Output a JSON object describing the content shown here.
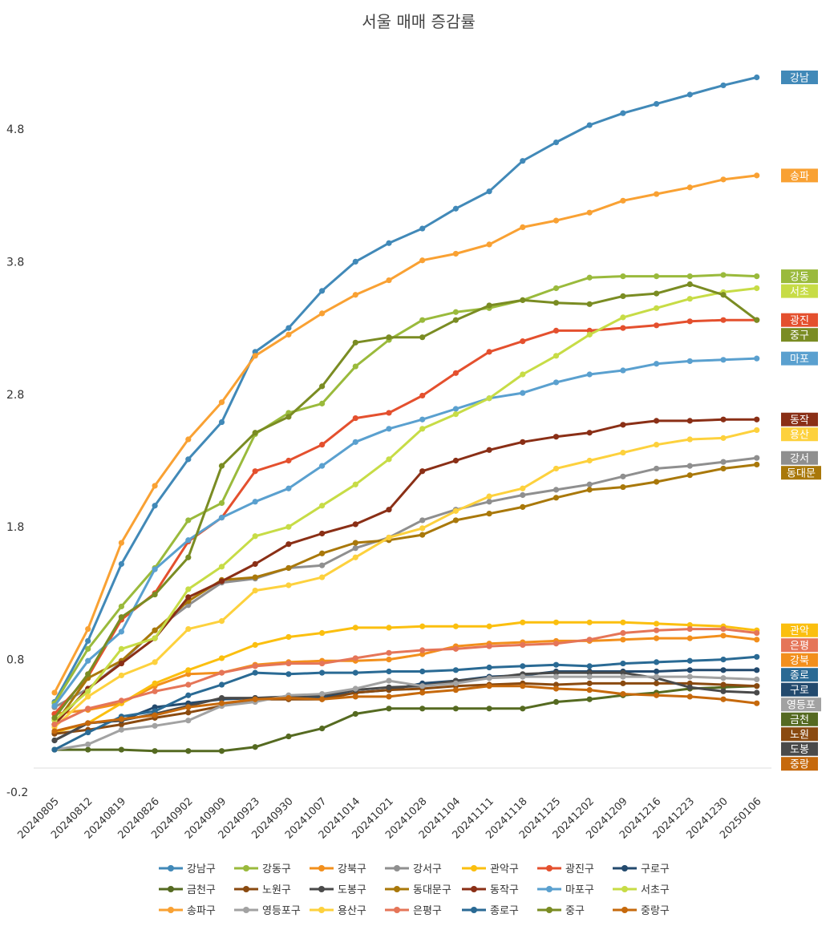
{
  "chart_data": {
    "type": "line",
    "title": "서울 매매 증감률",
    "xlabel": "",
    "ylabel": "",
    "ylim": [
      -0.2,
      5.6
    ],
    "yticks": [
      -0.2,
      0.8,
      1.8,
      2.8,
      3.8,
      4.8
    ],
    "categories": [
      "20240805",
      "20240812",
      "20240819",
      "20240826",
      "20240902",
      "20240909",
      "20240923",
      "20240930",
      "20241007",
      "20241014",
      "20241021",
      "20241028",
      "20241104",
      "20241111",
      "20241118",
      "20241125",
      "20241202",
      "20241209",
      "20241216",
      "20241223",
      "20241230",
      "20250106"
    ],
    "series": [
      {
        "name": "강남구",
        "color": "#4189b8",
        "end_label": "강남",
        "values": [
          0.48,
          0.94,
          1.52,
          1.96,
          2.31,
          2.59,
          3.12,
          3.3,
          3.58,
          3.8,
          3.94,
          4.05,
          4.2,
          4.33,
          4.56,
          4.7,
          4.83,
          4.92,
          4.99,
          5.06,
          5.13,
          5.19
        ]
      },
      {
        "name": "강동구",
        "color": "#9aba3c",
        "end_label": "강동",
        "values": [
          0.47,
          0.88,
          1.2,
          1.49,
          1.85,
          1.98,
          2.5,
          2.66,
          2.73,
          3.01,
          3.21,
          3.36,
          3.42,
          3.45,
          3.51,
          3.6,
          3.68,
          3.69,
          3.69,
          3.69,
          3.7,
          3.69
        ]
      },
      {
        "name": "강북구",
        "color": "#f28f1c",
        "end_label": "강북",
        "values": [
          0.39,
          0.42,
          0.47,
          0.6,
          0.69,
          0.7,
          0.76,
          0.78,
          0.79,
          0.79,
          0.8,
          0.84,
          0.9,
          0.92,
          0.93,
          0.94,
          0.94,
          0.95,
          0.96,
          0.96,
          0.98,
          0.95
        ]
      },
      {
        "name": "강서구",
        "color": "#8f8f8f",
        "end_label": "강서",
        "values": [
          0.44,
          0.58,
          0.78,
          1.02,
          1.21,
          1.38,
          1.41,
          1.49,
          1.51,
          1.64,
          1.72,
          1.85,
          1.93,
          1.99,
          2.04,
          2.08,
          2.12,
          2.18,
          2.24,
          2.26,
          2.29,
          2.32
        ]
      },
      {
        "name": "관악구",
        "color": "#fbbf0f",
        "end_label": "관악",
        "values": [
          0.25,
          0.32,
          0.47,
          0.62,
          0.72,
          0.81,
          0.91,
          0.97,
          1.0,
          1.04,
          1.04,
          1.05,
          1.05,
          1.05,
          1.08,
          1.08,
          1.08,
          1.08,
          1.07,
          1.06,
          1.05,
          1.02
        ]
      },
      {
        "name": "광진구",
        "color": "#e4502e",
        "end_label": "광진",
        "values": [
          0.39,
          0.67,
          1.1,
          1.3,
          1.69,
          1.87,
          2.22,
          2.3,
          2.42,
          2.62,
          2.66,
          2.79,
          2.96,
          3.12,
          3.2,
          3.28,
          3.28,
          3.3,
          3.32,
          3.35,
          3.36,
          3.36
        ]
      },
      {
        "name": "구로구",
        "color": "#234a6e",
        "end_label": "구로",
        "values": [
          0.19,
          0.32,
          0.34,
          0.44,
          0.47,
          0.5,
          0.51,
          0.51,
          0.52,
          0.55,
          0.57,
          0.62,
          0.64,
          0.67,
          0.68,
          0.71,
          0.71,
          0.71,
          0.71,
          0.72,
          0.72,
          0.72
        ]
      },
      {
        "name": "금천구",
        "color": "#556a21",
        "end_label": "금천",
        "values": [
          0.12,
          0.12,
          0.12,
          0.11,
          0.11,
          0.11,
          0.14,
          0.22,
          0.28,
          0.39,
          0.43,
          0.43,
          0.43,
          0.43,
          0.43,
          0.48,
          0.5,
          0.53,
          0.55,
          0.58,
          0.59,
          0.6
        ]
      },
      {
        "name": "노원구",
        "color": "#8a4a10",
        "end_label": "노원",
        "values": [
          0.24,
          0.27,
          0.31,
          0.36,
          0.4,
          0.45,
          0.5,
          0.5,
          0.5,
          0.55,
          0.57,
          0.58,
          0.6,
          0.61,
          0.62,
          0.61,
          0.62,
          0.62,
          0.62,
          0.62,
          0.61,
          0.6
        ]
      },
      {
        "name": "도봉구",
        "color": "#4a4a4a",
        "end_label": "도봉",
        "values": [
          0.19,
          0.32,
          0.34,
          0.39,
          0.45,
          0.51,
          0.51,
          0.52,
          0.53,
          0.57,
          0.59,
          0.6,
          0.64,
          0.66,
          0.69,
          0.7,
          0.7,
          0.7,
          0.66,
          0.59,
          0.56,
          0.55
        ]
      },
      {
        "name": "동대문구",
        "color": "#a9780a",
        "end_label": "동대문",
        "values": [
          0.31,
          0.66,
          0.79,
          1.02,
          1.24,
          1.4,
          1.42,
          1.49,
          1.6,
          1.68,
          1.7,
          1.74,
          1.85,
          1.9,
          1.95,
          2.02,
          2.08,
          2.1,
          2.14,
          2.19,
          2.24,
          2.27
        ]
      },
      {
        "name": "동작구",
        "color": "#8a2f16",
        "end_label": "동작",
        "values": [
          0.31,
          0.58,
          0.77,
          0.96,
          1.27,
          1.39,
          1.52,
          1.67,
          1.75,
          1.82,
          1.93,
          2.22,
          2.3,
          2.38,
          2.44,
          2.48,
          2.51,
          2.57,
          2.6,
          2.6,
          2.61,
          2.61
        ]
      },
      {
        "name": "마포구",
        "color": "#5aa0cf",
        "end_label": "마포",
        "values": [
          0.45,
          0.79,
          1.01,
          1.48,
          1.7,
          1.87,
          1.99,
          2.09,
          2.26,
          2.44,
          2.54,
          2.61,
          2.69,
          2.77,
          2.81,
          2.89,
          2.95,
          2.98,
          3.03,
          3.05,
          3.06,
          3.07
        ]
      },
      {
        "name": "서초구",
        "color": "#c7dc46",
        "end_label": "서초",
        "values": [
          0.34,
          0.56,
          0.88,
          0.96,
          1.33,
          1.5,
          1.73,
          1.8,
          1.96,
          2.12,
          2.31,
          2.54,
          2.65,
          2.77,
          2.95,
          3.09,
          3.25,
          3.38,
          3.45,
          3.52,
          3.57,
          3.6
        ]
      },
      {
        "name": "송파구",
        "color": "#f9a133",
        "end_label": "송파",
        "values": [
          0.55,
          1.03,
          1.68,
          2.11,
          2.46,
          2.74,
          3.09,
          3.25,
          3.41,
          3.55,
          3.66,
          3.81,
          3.86,
          3.93,
          4.06,
          4.11,
          4.17,
          4.26,
          4.31,
          4.36,
          4.42,
          4.45
        ]
      },
      {
        "name": "영등포구",
        "color": "#a2a2a2",
        "end_label": "영등포",
        "values": [
          0.12,
          0.16,
          0.27,
          0.3,
          0.34,
          0.45,
          0.48,
          0.53,
          0.54,
          0.58,
          0.64,
          0.6,
          0.62,
          0.66,
          0.67,
          0.67,
          0.67,
          0.67,
          0.67,
          0.67,
          0.66,
          0.65
        ]
      },
      {
        "name": "용산구",
        "color": "#fdd13d",
        "end_label": "용산",
        "values": [
          0.29,
          0.52,
          0.68,
          0.78,
          1.03,
          1.09,
          1.32,
          1.36,
          1.42,
          1.57,
          1.72,
          1.79,
          1.92,
          2.03,
          2.09,
          2.24,
          2.3,
          2.36,
          2.42,
          2.46,
          2.47,
          2.53
        ]
      },
      {
        "name": "은평구",
        "color": "#e57558",
        "end_label": "은평",
        "values": [
          0.31,
          0.43,
          0.49,
          0.56,
          0.61,
          0.7,
          0.75,
          0.77,
          0.77,
          0.81,
          0.85,
          0.87,
          0.88,
          0.9,
          0.91,
          0.92,
          0.95,
          1.0,
          1.02,
          1.03,
          1.03,
          1.0
        ]
      },
      {
        "name": "종로구",
        "color": "#2a6a94",
        "end_label": "종로",
        "values": [
          0.12,
          0.25,
          0.37,
          0.41,
          0.53,
          0.61,
          0.7,
          0.69,
          0.7,
          0.7,
          0.71,
          0.71,
          0.72,
          0.74,
          0.75,
          0.76,
          0.75,
          0.77,
          0.78,
          0.79,
          0.8,
          0.82
        ]
      },
      {
        "name": "중구",
        "color": "#7a8c23",
        "end_label": "중구",
        "values": [
          0.36,
          0.69,
          1.12,
          1.29,
          1.57,
          2.26,
          2.51,
          2.63,
          2.86,
          3.19,
          3.23,
          3.23,
          3.36,
          3.47,
          3.51,
          3.49,
          3.48,
          3.54,
          3.56,
          3.63,
          3.55,
          3.36
        ]
      },
      {
        "name": "중랑구",
        "color": "#c6690c",
        "end_label": "중랑",
        "values": [
          0.26,
          0.32,
          0.35,
          0.38,
          0.44,
          0.47,
          0.5,
          0.51,
          0.5,
          0.52,
          0.52,
          0.55,
          0.57,
          0.6,
          0.6,
          0.58,
          0.57,
          0.54,
          0.53,
          0.52,
          0.5,
          0.47
        ]
      }
    ],
    "legend_position": "bottom",
    "grid": false
  }
}
